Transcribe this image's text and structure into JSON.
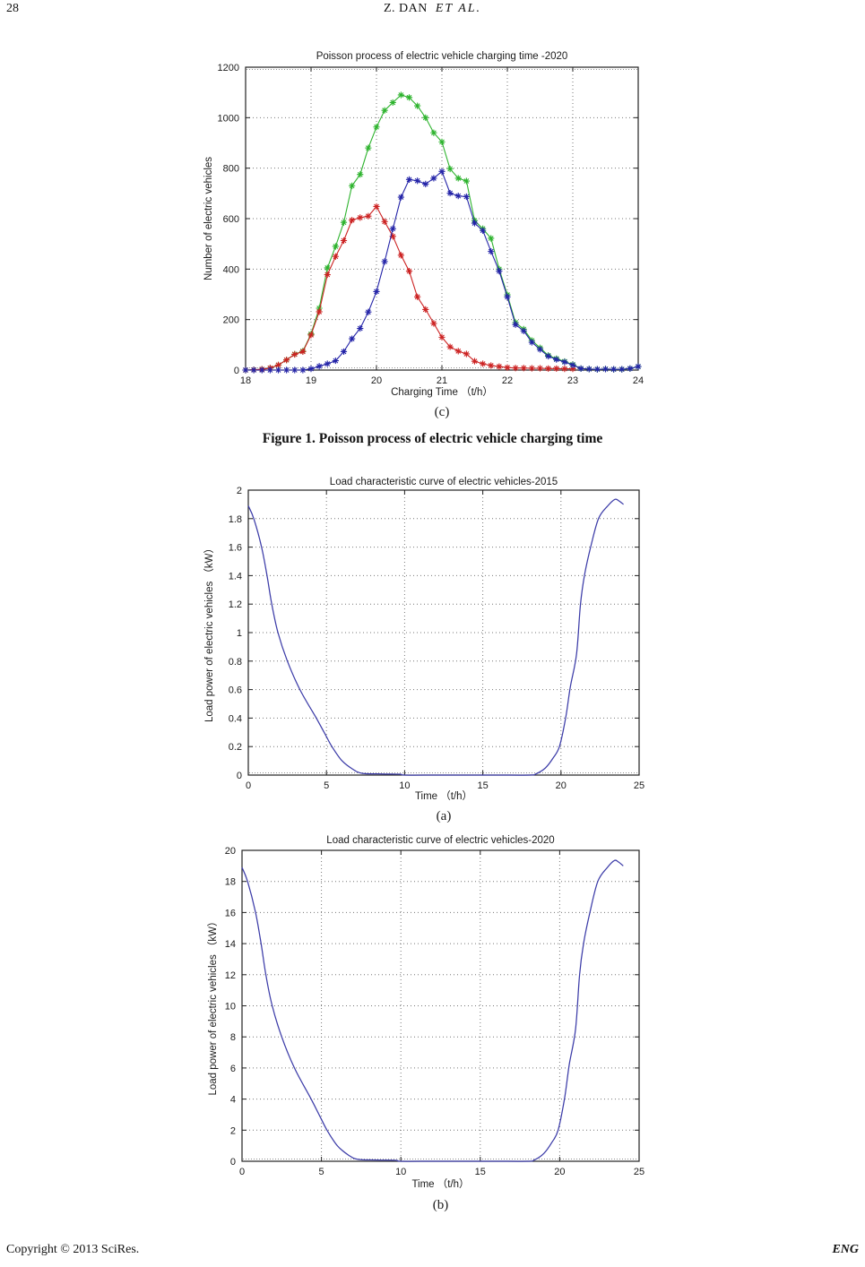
{
  "header": {
    "page_number": "28",
    "authors": "Z. DAN",
    "et_al": "ET AL."
  },
  "figure_caption": "Figure 1. Poisson process of electric vehicle charging time",
  "footer": {
    "left": "Copyright © 2013 SciRes.",
    "right": "ENG"
  },
  "colors": {
    "green": "#2db32d",
    "red": "#cc2222",
    "blue": "#2424a8",
    "load_curve": "#3c3ca8",
    "grid": "#777777",
    "axis": "#222222"
  },
  "chart_data": [
    {
      "id": "poisson-2020",
      "type": "line",
      "title": "Poisson process of electric vehicle charging time -2020",
      "xlabel": "Charging Time （t/h）",
      "ylabel": "Number of electric vehicles",
      "panel_label": "(c)",
      "xlim": [
        18,
        24
      ],
      "ylim": [
        0,
        1200
      ],
      "xticks": [
        18,
        19,
        20,
        21,
        22,
        23,
        24
      ],
      "yticks": [
        0,
        200,
        400,
        600,
        800,
        1000,
        1200
      ],
      "grid": true,
      "legend": "none",
      "marker": "*",
      "series": [
        {
          "name": "total-vehicles-green",
          "color": "#2db32d",
          "x": [
            18,
            18.125,
            18.25,
            18.375,
            18.5,
            18.625,
            18.75,
            18.875,
            19,
            19.125,
            19.25,
            19.375,
            19.5,
            19.625,
            19.75,
            19.875,
            20,
            20.125,
            20.25,
            20.375,
            20.5,
            20.625,
            20.75,
            20.875,
            21,
            21.125,
            21.25,
            21.375,
            21.5,
            21.625,
            21.75,
            21.875,
            22,
            22.125,
            22.25,
            22.375,
            22.5,
            22.625,
            22.75,
            22.875,
            23,
            23.125,
            23.25,
            23.375,
            23.5,
            23.625,
            23.75,
            23.875,
            24
          ],
          "values": [
            0,
            1,
            3,
            8,
            20,
            40,
            63,
            75,
            143,
            245,
            405,
            490,
            585,
            730,
            775,
            880,
            963,
            1029,
            1060,
            1090,
            1080,
            1047,
            1000,
            940,
            904,
            797,
            760,
            749,
            592,
            560,
            522,
            400,
            298,
            188,
            162,
            117,
            88,
            58,
            45,
            34,
            22,
            6,
            4,
            3,
            4,
            3,
            3,
            6,
            14
          ]
        },
        {
          "name": "first-peak-red",
          "color": "#cc2222",
          "x": [
            18,
            18.125,
            18.25,
            18.375,
            18.5,
            18.625,
            18.75,
            18.875,
            19,
            19.125,
            19.25,
            19.375,
            19.5,
            19.625,
            19.75,
            19.875,
            20,
            20.125,
            20.25,
            20.375,
            20.5,
            20.625,
            20.75,
            20.875,
            21,
            21.125,
            21.25,
            21.375,
            21.5,
            21.625,
            21.75,
            21.875,
            22,
            22.125,
            22.25,
            22.375,
            22.5,
            22.625,
            22.75,
            22.875,
            23
          ],
          "values": [
            0,
            1,
            3,
            8,
            20,
            40,
            62,
            73,
            139,
            231,
            378,
            450,
            513,
            594,
            604,
            610,
            648,
            588,
            530,
            455,
            392,
            290,
            240,
            185,
            130,
            92,
            75,
            64,
            35,
            25,
            18,
            14,
            10,
            8,
            8,
            7,
            7,
            6,
            6,
            5,
            5
          ]
        },
        {
          "name": "second-peak-blue",
          "color": "#2424a8",
          "x": [
            18,
            18.125,
            18.25,
            18.375,
            18.5,
            18.625,
            18.75,
            18.875,
            19,
            19.125,
            19.25,
            19.375,
            19.5,
            19.625,
            19.75,
            19.875,
            20,
            20.125,
            20.25,
            20.375,
            20.5,
            20.625,
            20.75,
            20.875,
            21,
            21.125,
            21.25,
            21.375,
            21.5,
            21.625,
            21.75,
            21.875,
            22,
            22.125,
            22.25,
            22.375,
            22.5,
            22.625,
            22.75,
            22.875,
            23,
            23.125,
            23.25,
            23.375,
            23.5,
            23.625,
            23.75,
            23.875,
            24
          ],
          "values": [
            0,
            0,
            0,
            0,
            0,
            0,
            0,
            0,
            5,
            15,
            25,
            37,
            73,
            124,
            165,
            230,
            311,
            430,
            560,
            685,
            755,
            750,
            737,
            760,
            787,
            701,
            690,
            687,
            582,
            553,
            470,
            392,
            290,
            180,
            155,
            110,
            82,
            55,
            42,
            32,
            20,
            6,
            4,
            3,
            4,
            3,
            3,
            6,
            14
          ]
        }
      ]
    },
    {
      "id": "load-2015",
      "type": "line",
      "title": "Load characteristic curve of electric vehicles-2015",
      "xlabel": "Time （t/h）",
      "ylabel": "Load power of electric vehicles （kW）",
      "panel_label": "(a)",
      "xlim": [
        0,
        25
      ],
      "ylim": [
        0,
        2
      ],
      "xticks": [
        0,
        5,
        10,
        15,
        20,
        25
      ],
      "yticks": [
        0,
        0.2,
        0.4,
        0.6,
        0.8,
        1,
        1.2,
        1.4,
        1.6,
        1.8,
        2
      ],
      "ytick_labels": [
        "0",
        "0.2",
        "0.4",
        "0.6",
        "0.8",
        "1",
        "1.2",
        "1.4",
        "1.6",
        "1.8",
        "2"
      ],
      "grid": true,
      "legend": "none",
      "marker": "none",
      "series": [
        {
          "name": "load-power-2015",
          "color": "#3c3ca8",
          "x": [
            0,
            0.35,
            0.85,
            1.2,
            1.5,
            1.9,
            2.5,
            3.3,
            4.35,
            4.9,
            5.35,
            6,
            6.7,
            7.3,
            8.5,
            9.7,
            10,
            12,
            14,
            16,
            18,
            18.4,
            19,
            19.5,
            19.9,
            20.3,
            20.6,
            21,
            21.25,
            21.5,
            21.9,
            22.4,
            23,
            23.45,
            23.7,
            24
          ],
          "values": [
            1.89,
            1.8,
            1.6,
            1.4,
            1.2,
            1.0,
            0.8,
            0.6,
            0.4,
            0.29,
            0.2,
            0.1,
            0.04,
            0.012,
            0.008,
            0.006,
            0,
            0,
            0,
            0,
            0,
            0.008,
            0.05,
            0.12,
            0.2,
            0.4,
            0.62,
            0.85,
            1.2,
            1.4,
            1.6,
            1.8,
            1.89,
            1.935,
            1.925,
            1.9
          ]
        }
      ]
    },
    {
      "id": "load-2020",
      "type": "line",
      "title": "Load characteristic curve of electric vehicles-2020",
      "xlabel": "Time （t/h）",
      "ylabel": "Load power of electric vehicles （kW）",
      "panel_label": "(b)",
      "xlim": [
        0,
        25
      ],
      "ylim": [
        0,
        20
      ],
      "xticks": [
        0,
        5,
        10,
        15,
        20,
        25
      ],
      "yticks": [
        0,
        2,
        4,
        6,
        8,
        10,
        12,
        14,
        16,
        18,
        20
      ],
      "grid": true,
      "legend": "none",
      "marker": "none",
      "series": [
        {
          "name": "load-power-2020",
          "color": "#3c3ca8",
          "x": [
            0,
            0.35,
            0.85,
            1.2,
            1.5,
            1.9,
            2.5,
            3.3,
            4.35,
            4.9,
            5.35,
            6,
            6.7,
            7.3,
            8.5,
            9.7,
            10,
            12,
            14,
            16,
            18,
            18.4,
            19,
            19.5,
            19.9,
            20.3,
            20.6,
            21,
            21.25,
            21.5,
            21.9,
            22.4,
            23,
            23.45,
            23.7,
            24
          ],
          "values": [
            18.9,
            18,
            16,
            14,
            12,
            10,
            8,
            6,
            4,
            2.9,
            2,
            1,
            0.4,
            0.12,
            0.08,
            0.06,
            0,
            0,
            0,
            0,
            0,
            0.08,
            0.5,
            1.2,
            2,
            4,
            6.2,
            8.5,
            12,
            14,
            16,
            18,
            18.9,
            19.35,
            19.25,
            19
          ]
        }
      ]
    }
  ]
}
